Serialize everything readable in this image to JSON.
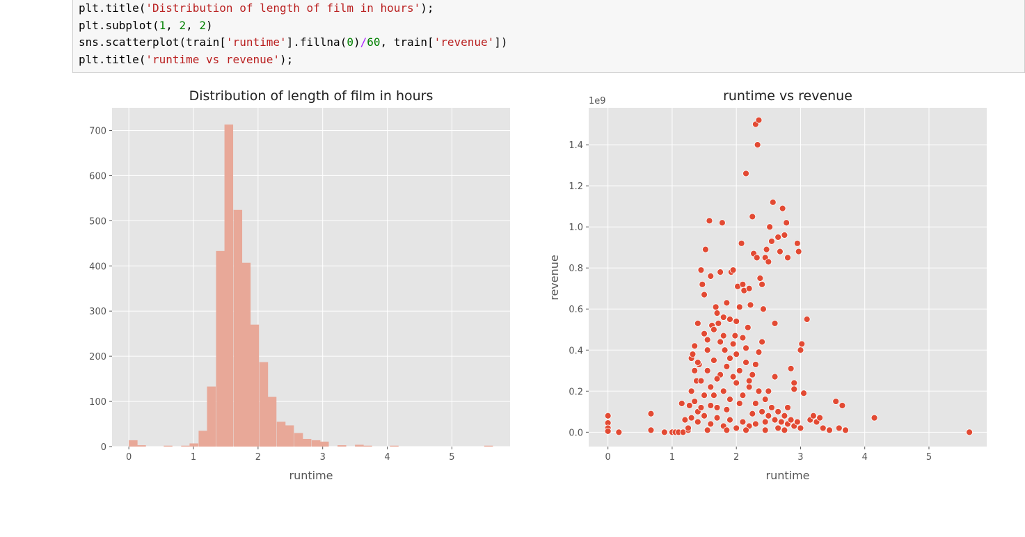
{
  "code": {
    "lines": [
      [
        {
          "t": "plt.title("
        },
        {
          "t": "'Distribution of length of film in hours'",
          "c": "s"
        },
        {
          "t": ");"
        }
      ],
      [
        {
          "t": "plt.subplot("
        },
        {
          "t": "1",
          "c": "n"
        },
        {
          "t": ", "
        },
        {
          "t": "2",
          "c": "n"
        },
        {
          "t": ", "
        },
        {
          "t": "2",
          "c": "n"
        },
        {
          "t": ")"
        }
      ],
      [
        {
          "t": "sns.scatterplot(train["
        },
        {
          "t": "'runtime'",
          "c": "s"
        },
        {
          "t": "].fillna("
        },
        {
          "t": "0",
          "c": "n"
        },
        {
          "t": ")"
        },
        {
          "t": "/",
          "c": "o"
        },
        {
          "t": "60",
          "c": "n"
        },
        {
          "t": ", train["
        },
        {
          "t": "'revenue'",
          "c": "s"
        },
        {
          "t": "])"
        }
      ],
      [
        {
          "t": "plt.title("
        },
        {
          "t": "'runtime vs revenue'",
          "c": "s"
        },
        {
          "t": ");"
        }
      ]
    ]
  },
  "colors": {
    "axes_bg": "#e5e5e5",
    "grid": "#ffffff",
    "hist_bar": "#e8a898",
    "point": "#e24a33",
    "point_edge": "#ffffff",
    "tick_text": "#555555",
    "label_text": "#333333"
  },
  "chart_data": [
    {
      "type": "bar",
      "title": "Distribution of length of film in hours",
      "xlabel": "runtime",
      "ylabel": "",
      "xlim": [
        -0.26,
        5.9
      ],
      "ylim": [
        0,
        750
      ],
      "xticks": [
        0,
        1,
        2,
        3,
        4,
        5
      ],
      "yticks": [
        0,
        100,
        200,
        300,
        400,
        500,
        600,
        700
      ],
      "grid": true,
      "bin_width": 0.1345,
      "bins": [
        {
          "x": 0.0,
          "value": 14
        },
        {
          "x": 0.13,
          "value": 3
        },
        {
          "x": 0.54,
          "value": 2
        },
        {
          "x": 0.81,
          "value": 2
        },
        {
          "x": 0.94,
          "value": 7
        },
        {
          "x": 1.08,
          "value": 35
        },
        {
          "x": 1.21,
          "value": 133
        },
        {
          "x": 1.35,
          "value": 433
        },
        {
          "x": 1.48,
          "value": 713
        },
        {
          "x": 1.62,
          "value": 524
        },
        {
          "x": 1.75,
          "value": 407
        },
        {
          "x": 1.88,
          "value": 270
        },
        {
          "x": 2.02,
          "value": 187
        },
        {
          "x": 2.15,
          "value": 110
        },
        {
          "x": 2.29,
          "value": 55
        },
        {
          "x": 2.42,
          "value": 47
        },
        {
          "x": 2.56,
          "value": 30
        },
        {
          "x": 2.69,
          "value": 17
        },
        {
          "x": 2.83,
          "value": 14
        },
        {
          "x": 2.96,
          "value": 11
        },
        {
          "x": 3.23,
          "value": 3
        },
        {
          "x": 3.5,
          "value": 4
        },
        {
          "x": 3.63,
          "value": 2
        },
        {
          "x": 4.04,
          "value": 2
        },
        {
          "x": 5.5,
          "value": 2
        }
      ]
    },
    {
      "type": "scatter",
      "title": "runtime vs revenue",
      "xlabel": "runtime",
      "ylabel": "revenue",
      "offset_label": "1e9",
      "xlim": [
        -0.3,
        5.9
      ],
      "ylim": [
        -0.07,
        1.58
      ],
      "xticks": [
        0,
        1,
        2,
        3,
        4,
        5
      ],
      "yticks": [
        0.0,
        0.2,
        0.4,
        0.6,
        0.8,
        1.0,
        1.2,
        1.4
      ],
      "ytick_labels": [
        "0.0",
        "0.2",
        "0.4",
        "0.6",
        "0.8",
        "1.0",
        "1.2",
        "1.4"
      ],
      "grid": true,
      "points": [
        [
          0,
          0.08
        ],
        [
          0,
          0.045
        ],
        [
          0,
          0.02
        ],
        [
          0,
          0.005
        ],
        [
          0.17,
          0
        ],
        [
          0.67,
          0.09
        ],
        [
          0.67,
          0.01
        ],
        [
          0.88,
          0
        ],
        [
          1.0,
          0
        ],
        [
          1.05,
          0
        ],
        [
          1.1,
          0
        ],
        [
          1.15,
          0.14
        ],
        [
          1.17,
          0
        ],
        [
          1.2,
          0.06
        ],
        [
          1.25,
          0.01
        ],
        [
          1.27,
          0.13
        ],
        [
          1.3,
          0.36
        ],
        [
          1.32,
          0.38
        ],
        [
          1.35,
          0.3
        ],
        [
          1.38,
          0.25
        ],
        [
          1.4,
          0.53
        ],
        [
          1.42,
          0.33
        ],
        [
          1.45,
          0.79
        ],
        [
          1.47,
          0.72
        ],
        [
          1.5,
          0.67
        ],
        [
          1.52,
          0.89
        ],
        [
          1.55,
          0.45
        ],
        [
          1.58,
          1.03
        ],
        [
          1.6,
          0.76
        ],
        [
          1.62,
          0.52
        ],
        [
          1.65,
          0.5
        ],
        [
          1.68,
          0.61
        ],
        [
          1.7,
          0.58
        ],
        [
          1.72,
          0.53
        ],
        [
          1.75,
          0.78
        ],
        [
          1.78,
          1.02
        ],
        [
          1.8,
          0.47
        ],
        [
          1.82,
          0.4
        ],
        [
          1.85,
          0.63
        ],
        [
          1.9,
          0.55
        ],
        [
          1.92,
          0.78
        ],
        [
          1.95,
          0.79
        ],
        [
          1.98,
          0.47
        ],
        [
          2.0,
          0.54
        ],
        [
          2.02,
          0.71
        ],
        [
          2.05,
          0.61
        ],
        [
          2.08,
          0.92
        ],
        [
          2.1,
          0.72
        ],
        [
          2.12,
          0.69
        ],
        [
          2.15,
          1.26
        ],
        [
          2.18,
          0.51
        ],
        [
          2.2,
          0.7
        ],
        [
          2.22,
          0.62
        ],
        [
          2.25,
          1.05
        ],
        [
          2.27,
          0.87
        ],
        [
          2.3,
          1.5
        ],
        [
          2.32,
          0.85
        ],
        [
          2.33,
          1.4
        ],
        [
          2.35,
          1.52
        ],
        [
          2.37,
          0.75
        ],
        [
          2.4,
          0.72
        ],
        [
          2.42,
          0.6
        ],
        [
          2.45,
          0.85
        ],
        [
          2.47,
          0.89
        ],
        [
          2.5,
          0.83
        ],
        [
          2.52,
          1.0
        ],
        [
          2.55,
          0.93
        ],
        [
          2.57,
          1.12
        ],
        [
          2.6,
          0.53
        ],
        [
          2.65,
          0.95
        ],
        [
          2.68,
          0.88
        ],
        [
          2.72,
          1.09
        ],
        [
          2.75,
          0.96
        ],
        [
          2.78,
          1.02
        ],
        [
          2.8,
          0.85
        ],
        [
          2.85,
          0.31
        ],
        [
          2.9,
          0.24
        ],
        [
          2.95,
          0.92
        ],
        [
          2.97,
          0.88
        ],
        [
          3.0,
          0.4
        ],
        [
          3.02,
          0.43
        ],
        [
          3.05,
          0.19
        ],
        [
          3.1,
          0.55
        ],
        [
          3.15,
          0.06
        ],
        [
          3.2,
          0.08
        ],
        [
          3.25,
          0.05
        ],
        [
          3.3,
          0.07
        ],
        [
          3.35,
          0.02
        ],
        [
          3.45,
          0.01
        ],
        [
          3.55,
          0.15
        ],
        [
          3.6,
          0.02
        ],
        [
          3.65,
          0.13
        ],
        [
          3.7,
          0.01
        ],
        [
          4.15,
          0.07
        ],
        [
          5.63,
          0
        ],
        [
          1.3,
          0.2
        ],
        [
          1.35,
          0.15
        ],
        [
          1.4,
          0.1
        ],
        [
          1.45,
          0.25
        ],
        [
          1.5,
          0.18
        ],
        [
          1.55,
          0.3
        ],
        [
          1.6,
          0.22
        ],
        [
          1.65,
          0.35
        ],
        [
          1.7,
          0.12
        ],
        [
          1.75,
          0.28
        ],
        [
          1.8,
          0.2
        ],
        [
          1.85,
          0.32
        ],
        [
          1.9,
          0.16
        ],
        [
          1.95,
          0.27
        ],
        [
          2.0,
          0.24
        ],
        [
          2.05,
          0.3
        ],
        [
          2.1,
          0.18
        ],
        [
          2.15,
          0.34
        ],
        [
          2.2,
          0.22
        ],
        [
          2.25,
          0.28
        ],
        [
          2.3,
          0.14
        ],
        [
          2.35,
          0.2
        ],
        [
          2.4,
          0.1
        ],
        [
          2.45,
          0.16
        ],
        [
          2.5,
          0.08
        ],
        [
          2.55,
          0.12
        ],
        [
          2.6,
          0.06
        ],
        [
          2.65,
          0.1
        ],
        [
          2.7,
          0.05
        ],
        [
          2.75,
          0.08
        ],
        [
          2.8,
          0.04
        ],
        [
          2.85,
          0.06
        ],
        [
          2.9,
          0.03
        ],
        [
          2.95,
          0.05
        ],
        [
          1.4,
          0.05
        ],
        [
          1.5,
          0.08
        ],
        [
          1.6,
          0.04
        ],
        [
          1.7,
          0.07
        ],
        [
          1.8,
          0.03
        ],
        [
          1.9,
          0.06
        ],
        [
          2.0,
          0.02
        ],
        [
          2.1,
          0.05
        ],
        [
          2.2,
          0.03
        ],
        [
          2.3,
          0.04
        ],
        [
          1.35,
          0.42
        ],
        [
          1.55,
          0.4
        ],
        [
          1.75,
          0.44
        ],
        [
          1.95,
          0.43
        ],
        [
          2.15,
          0.41
        ],
        [
          2.35,
          0.39
        ],
        [
          1.45,
          0.12
        ],
        [
          1.65,
          0.18
        ],
        [
          1.85,
          0.11
        ],
        [
          2.05,
          0.14
        ],
        [
          2.25,
          0.09
        ],
        [
          2.45,
          0.05
        ],
        [
          2.65,
          0.02
        ],
        [
          1.25,
          0.02
        ],
        [
          1.55,
          0.01
        ],
        [
          1.85,
          0.01
        ],
        [
          2.15,
          0.01
        ],
        [
          2.45,
          0.01
        ],
        [
          2.75,
          0.01
        ],
        [
          3.0,
          0.02
        ],
        [
          1.3,
          0.07
        ],
        [
          1.6,
          0.13
        ],
        [
          1.9,
          0.36
        ],
        [
          2.2,
          0.25
        ],
        [
          2.5,
          0.2
        ],
        [
          2.8,
          0.12
        ],
        [
          1.4,
          0.34
        ],
        [
          1.7,
          0.26
        ],
        [
          2.0,
          0.38
        ],
        [
          2.3,
          0.33
        ],
        [
          2.6,
          0.27
        ],
        [
          2.9,
          0.21
        ],
        [
          1.5,
          0.48
        ],
        [
          1.8,
          0.56
        ],
        [
          2.1,
          0.46
        ],
        [
          2.4,
          0.44
        ]
      ]
    }
  ]
}
